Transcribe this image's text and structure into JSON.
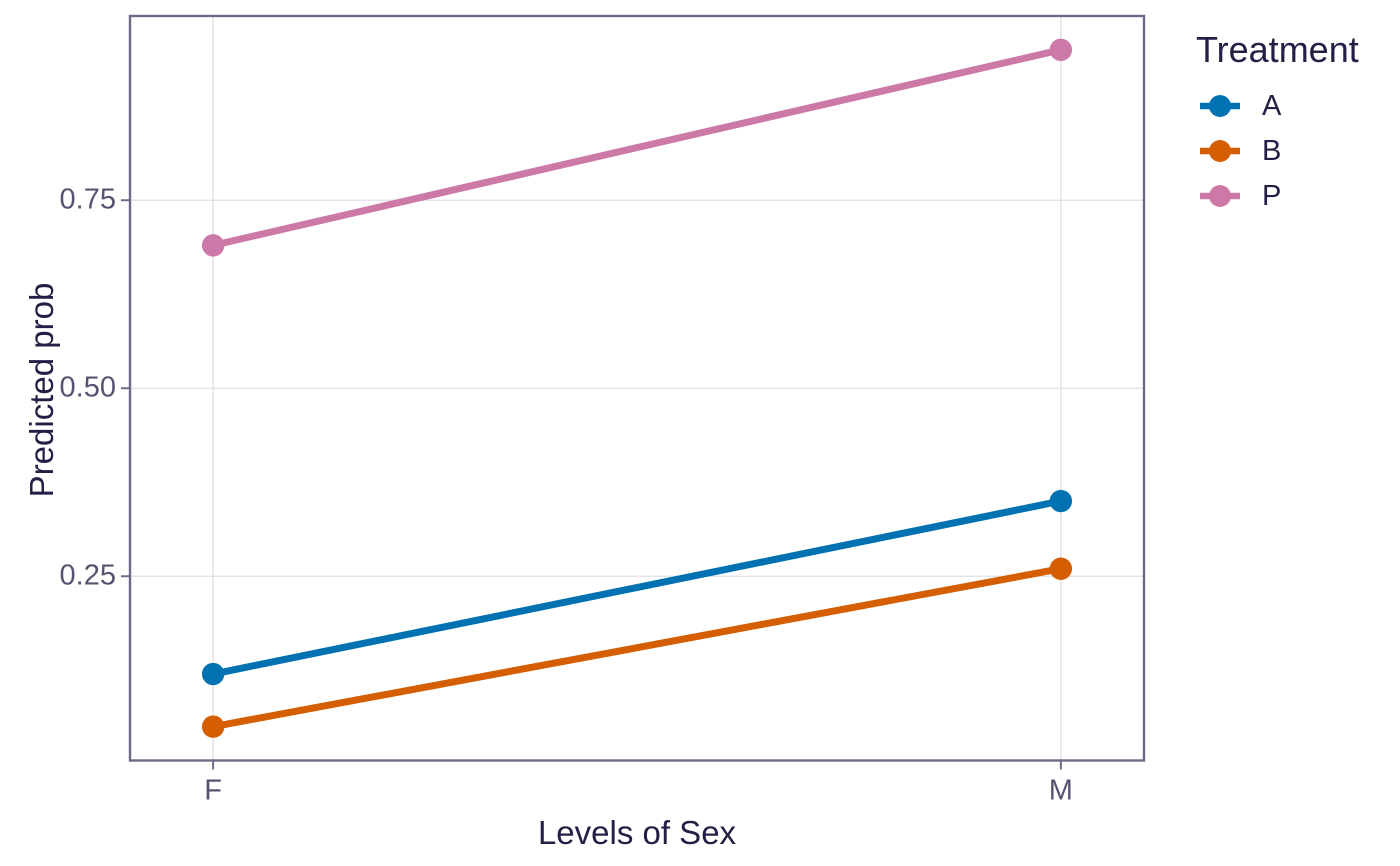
{
  "chart_data": {
    "type": "line",
    "title": "",
    "xlabel": "Levels of Sex",
    "ylabel": "Predicted prob",
    "categories": [
      "F",
      "M"
    ],
    "series": [
      {
        "name": "A",
        "color": "#0072B2",
        "values": [
          0.12,
          0.35
        ]
      },
      {
        "name": "B",
        "color": "#D55E00",
        "values": [
          0.05,
          0.26
        ]
      },
      {
        "name": "P",
        "color": "#CC79A7",
        "values": [
          0.69,
          0.95
        ]
      }
    ],
    "yticks": [
      {
        "value": 0.25,
        "label": "0.25"
      },
      {
        "value": 0.5,
        "label": "0.50"
      },
      {
        "value": 0.75,
        "label": "0.75"
      }
    ],
    "ylim": [
      0.005,
      0.995
    ],
    "grid": "major-only",
    "legend": {
      "title": "Treatment",
      "position": "right",
      "entries": [
        "A",
        "B",
        "P"
      ]
    },
    "theme": {
      "background": "#FFFFFF",
      "text_dark": "#232045",
      "axis_text": "#575370",
      "panel_border": "#6F6987",
      "gridline": "#E5E4EA"
    }
  }
}
